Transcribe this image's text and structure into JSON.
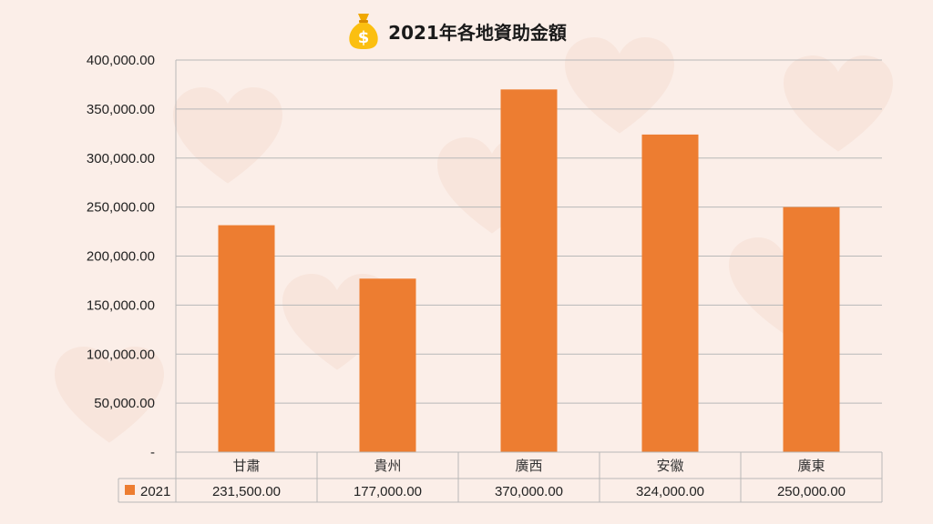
{
  "title": "2021年各地資助金額",
  "icon": "money-bag-icon",
  "colors": {
    "bar": "#ed7d31",
    "grid": "#b8b8b8",
    "background": "#fbeee8"
  },
  "chart_data": {
    "type": "bar",
    "title": "2021年各地資助金額",
    "categories": [
      "甘肅",
      "貴州",
      "廣西",
      "安徽",
      "廣東"
    ],
    "series": [
      {
        "name": "2021",
        "values": [
          231500,
          177000,
          370000,
          324000,
          250000
        ]
      }
    ],
    "ylim": [
      0,
      400000
    ],
    "yticks": [
      0,
      50000,
      100000,
      150000,
      200000,
      250000,
      300000,
      350000,
      400000
    ],
    "ytick_labels": [
      "-",
      "50,000.00",
      "100,000.00",
      "150,000.00",
      "200,000.00",
      "250,000.00",
      "300,000.00",
      "350,000.00",
      "400,000.00"
    ],
    "data_table": {
      "legend_label": "2021",
      "cells": [
        "231,500.00",
        "177,000.00",
        "370,000.00",
        "324,000.00",
        "250,000.00"
      ]
    },
    "grid": true,
    "legend": "data-table"
  }
}
